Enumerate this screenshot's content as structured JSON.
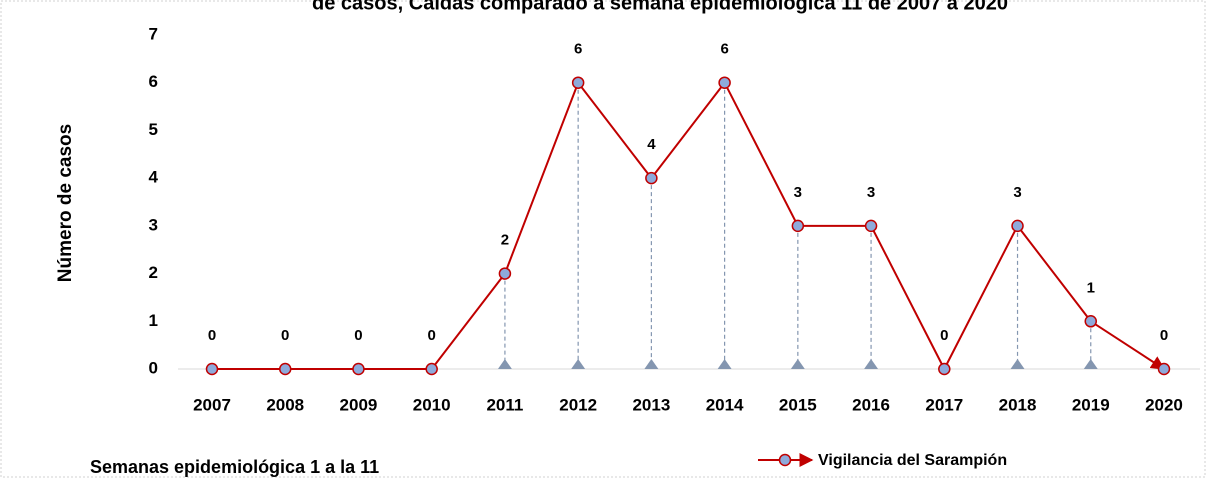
{
  "chart_data": {
    "type": "line",
    "title": "de casos, Caldas comparado a semana epidemiológica 11 de 2007 a 2020",
    "categories": [
      "2007",
      "2008",
      "2009",
      "2010",
      "2011",
      "2012",
      "2013",
      "2014",
      "2015",
      "2016",
      "2017",
      "2018",
      "2019",
      "2020"
    ],
    "series": [
      {
        "name": "Vigilancia del Sarampión",
        "color": "#c00000",
        "marker_color": "#8eaadb",
        "values": [
          0,
          0,
          0,
          0,
          2,
          6,
          4,
          6,
          3,
          3,
          0,
          3,
          1,
          0
        ]
      }
    ],
    "ylim": [
      0,
      7
    ],
    "yticks": [
      0,
      1,
      2,
      3,
      4,
      5,
      6,
      7
    ],
    "y_label": "Número de casos",
    "annotation": "Semanas epidemiológica 1 a la 11",
    "legend": "bottom-right"
  }
}
